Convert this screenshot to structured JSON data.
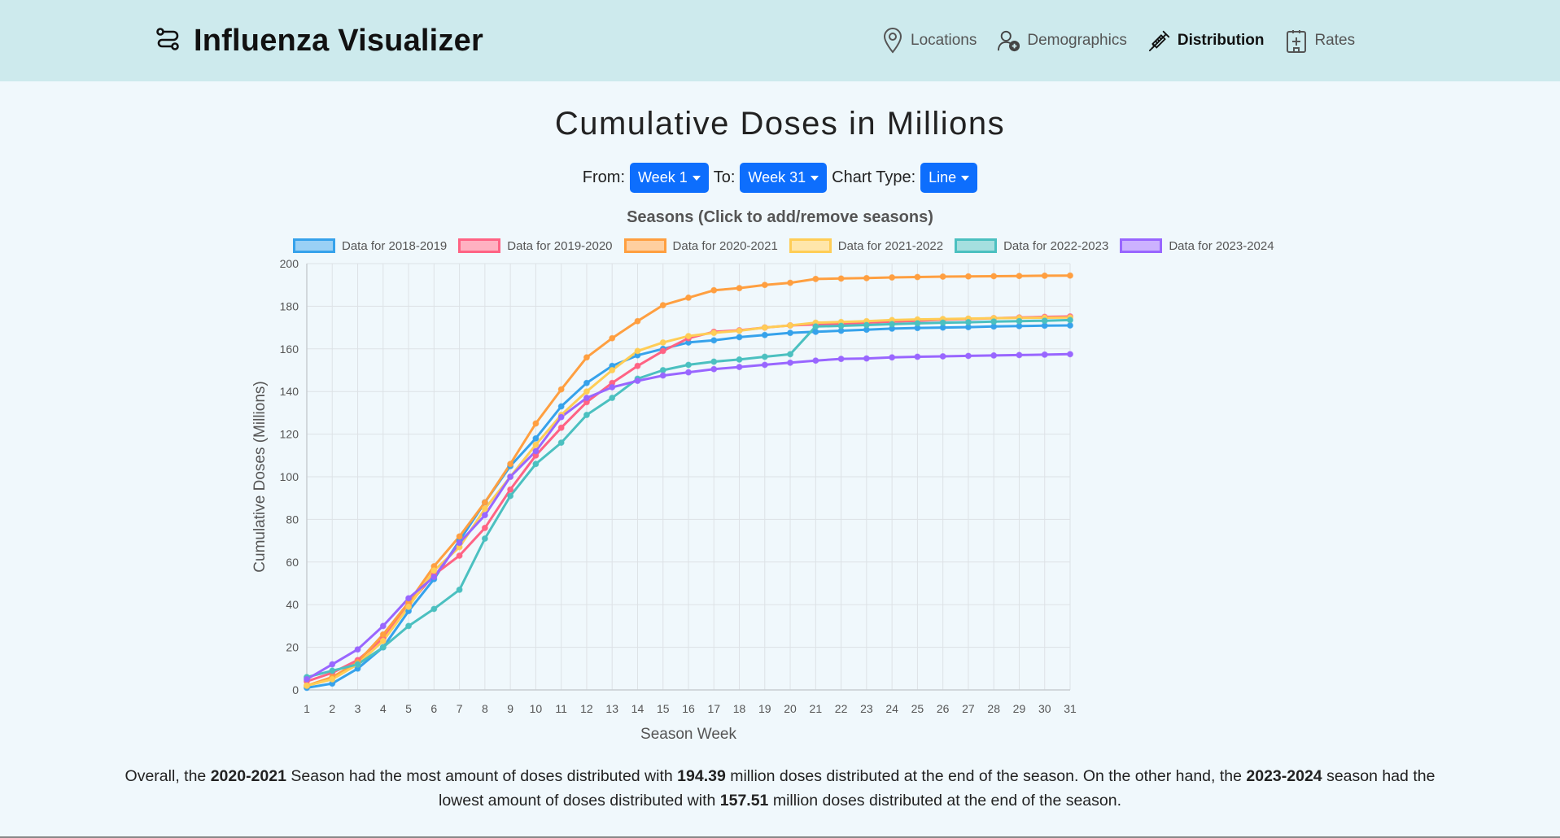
{
  "app": {
    "title": "Influenza Visualizer"
  },
  "nav": {
    "items": [
      {
        "label": "Locations",
        "icon": "map-pin-icon"
      },
      {
        "label": "Demographics",
        "icon": "people-icon"
      },
      {
        "label": "Distribution",
        "icon": "syringe-icon",
        "active": true
      },
      {
        "label": "Rates",
        "icon": "hospital-icon"
      }
    ]
  },
  "page": {
    "title": "Cumulative Doses in Millions"
  },
  "controls": {
    "from_label": "From:",
    "from_value": "Week 1",
    "to_label": "To:",
    "to_value": "Week 31",
    "type_label": "Chart Type:",
    "type_value": "Line"
  },
  "legend": {
    "title": "Seasons (Click to add/remove seasons)",
    "items": [
      {
        "label": "Data for 2018-2019",
        "color": "#36a2eb",
        "fill": "#9ad0f5"
      },
      {
        "label": "Data for 2019-2020",
        "color": "#ff6384",
        "fill": "#ffb1c1"
      },
      {
        "label": "Data for 2020-2021",
        "color": "#ff9f40",
        "fill": "#ffcf9f"
      },
      {
        "label": "Data for 2021-2022",
        "color": "#ffcd56",
        "fill": "#ffe6aa"
      },
      {
        "label": "Data for 2022-2023",
        "color": "#4bc0c0",
        "fill": "#a5dfdf"
      },
      {
        "label": "Data for 2023-2024",
        "color": "#9966ff",
        "fill": "#ccb2ff"
      }
    ]
  },
  "chart_data": {
    "type": "line",
    "xlabel": "Season Week",
    "ylabel": "Cumulative Doses (Millions)",
    "ylim": [
      0,
      200
    ],
    "yticks": [
      0,
      20,
      40,
      60,
      80,
      100,
      120,
      140,
      160,
      180,
      200
    ],
    "x": [
      1,
      2,
      3,
      4,
      5,
      6,
      7,
      8,
      9,
      10,
      11,
      12,
      13,
      14,
      15,
      16,
      17,
      18,
      19,
      20,
      21,
      22,
      23,
      24,
      25,
      26,
      27,
      28,
      29,
      30,
      31
    ],
    "grid": true,
    "legend_position": "top",
    "series": [
      {
        "name": "Data for 2018-2019",
        "color": "#36a2eb",
        "values": [
          1,
          3,
          10,
          20,
          37,
          52,
          70,
          88,
          105,
          118,
          133,
          144,
          152,
          157,
          160,
          163,
          164,
          165.5,
          166.5,
          167.5,
          168,
          168.5,
          169,
          169.5,
          169.8,
          170,
          170.2,
          170.5,
          170.7,
          170.9,
          171
        ]
      },
      {
        "name": "Data for 2019-2020",
        "color": "#ff6384",
        "values": [
          4,
          8,
          14,
          24,
          40,
          54,
          63,
          76,
          94,
          110,
          123,
          135,
          144,
          152,
          159,
          165,
          168,
          168.7,
          170,
          171,
          171.5,
          171.8,
          172.3,
          172.8,
          173.2,
          173.7,
          174,
          174.4,
          174.7,
          175,
          175.2
        ]
      },
      {
        "name": "Data for 2020-2021",
        "color": "#ff9f40",
        "values": [
          2,
          6,
          13,
          26,
          41,
          58,
          72,
          88,
          106,
          125,
          141,
          156,
          165,
          173,
          180.5,
          184,
          187.5,
          188.5,
          190,
          191,
          192.8,
          193,
          193.2,
          193.5,
          193.7,
          193.9,
          194,
          194.1,
          194.2,
          194.3,
          194.39
        ]
      },
      {
        "name": "Data for 2021-2022",
        "color": "#ffcd56",
        "values": [
          2,
          5,
          12,
          23,
          39,
          56,
          67,
          85,
          100,
          115,
          129,
          140,
          150,
          159,
          163,
          166,
          167.5,
          168.5,
          170,
          171,
          172.3,
          172.6,
          173,
          173.5,
          173.8,
          174,
          174.2,
          174.4,
          174.5,
          174.6,
          174.7
        ]
      },
      {
        "name": "Data for 2022-2023",
        "color": "#4bc0c0",
        "values": [
          6,
          9,
          12,
          20,
          30,
          38,
          47,
          71,
          91,
          106,
          116,
          129,
          137,
          146,
          150,
          152.5,
          154,
          155,
          156.3,
          157.5,
          170.5,
          170.8,
          171.2,
          171.6,
          172,
          172.3,
          172.5,
          172.8,
          173,
          173.2,
          173.5
        ]
      },
      {
        "name": "Data for 2023-2024",
        "color": "#9966ff",
        "values": [
          5,
          12,
          19,
          30,
          43,
          53,
          69,
          82,
          100,
          112,
          128,
          137,
          142,
          145,
          147.5,
          149,
          150.5,
          151.5,
          152.5,
          153.5,
          154.5,
          155.3,
          155.5,
          156,
          156.3,
          156.5,
          156.7,
          156.9,
          157.1,
          157.3,
          157.51
        ]
      }
    ]
  },
  "summary": {
    "t1": "Overall, the ",
    "max_season": "2020-2021",
    "t2": " Season had the most amount of doses distributed with ",
    "max_value": "194.39",
    "t3": " million doses distributed at the end of the season. On the other hand, the ",
    "min_season": "2023-2024",
    "t4": " season had the lowest amount of doses distributed with ",
    "min_value": "157.51",
    "t5": " million doses distributed at the end of the season."
  }
}
